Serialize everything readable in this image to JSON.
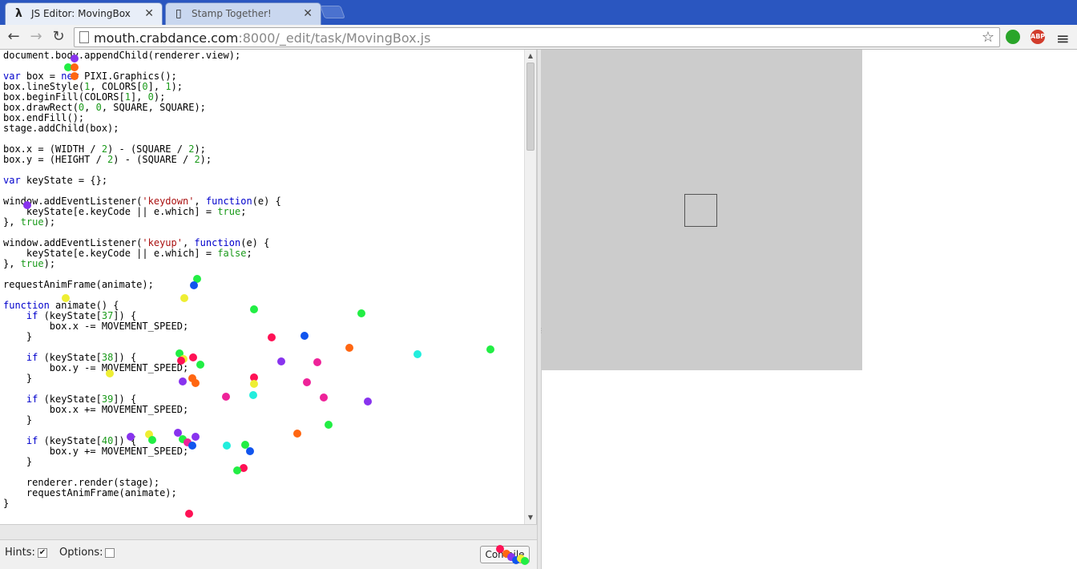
{
  "tabs": [
    {
      "title": "JS Editor: MovingBox",
      "favicon": "lambda",
      "active": true
    },
    {
      "title": "Stamp Together!",
      "favicon": "page",
      "active": false
    }
  ],
  "toolbar": {
    "url_host": "mouth.crabdance.com",
    "url_rest": ":8000/_edit/task/MovingBox.js"
  },
  "extensions": {
    "abp_label": "ABP"
  },
  "code_lines": [
    "document.body.appendChild(renderer.view);",
    "",
    "var box = new PIXI.Graphics();",
    "box.lineStyle(1, COLORS[0], 1);",
    "box.beginFill(COLORS[1], 0);",
    "box.drawRect(0, 0, SQUARE, SQUARE);",
    "box.endFill();",
    "stage.addChild(box);",
    "",
    "box.x = (WIDTH / 2) - (SQUARE / 2);",
    "box.y = (HEIGHT / 2) - (SQUARE / 2);",
    "",
    "var keyState = {};",
    "",
    "window.addEventListener('keydown', function(e) {",
    "    keyState[e.keyCode || e.which] = true;",
    "}, true);",
    "",
    "window.addEventListener('keyup', function(e) {",
    "    keyState[e.keyCode || e.which] = false;",
    "}, true);",
    "",
    "requestAnimFrame(animate);",
    "",
    "function animate() {",
    "    if (keyState[37]) {",
    "        box.x -= MOVEMENT_SPEED;",
    "    }",
    "",
    "    if (keyState[38]) {",
    "        box.y -= MOVEMENT_SPEED;",
    "    }",
    "",
    "    if (keyState[39]) {",
    "        box.x += MOVEMENT_SPEED;",
    "    }",
    "",
    "    if (keyState[40]) {",
    "        box.y += MOVEMENT_SPEED;",
    "    }",
    "",
    "    renderer.render(stage);",
    "    requestAnimFrame(animate);",
    "}"
  ],
  "bottom": {
    "hints_label": "Hints:",
    "hints_checked": true,
    "options_label": "Options:",
    "options_checked": false,
    "compile_label": "Compile"
  },
  "colors": {
    "preview_bg": "#cccccc",
    "box_stroke": "#555555",
    "dot_palette": [
      "#22ee44",
      "#8833ee",
      "#ff1155",
      "#ff6611",
      "#1155ee",
      "#eeee33",
      "#22eedd",
      "#ee2299"
    ]
  }
}
